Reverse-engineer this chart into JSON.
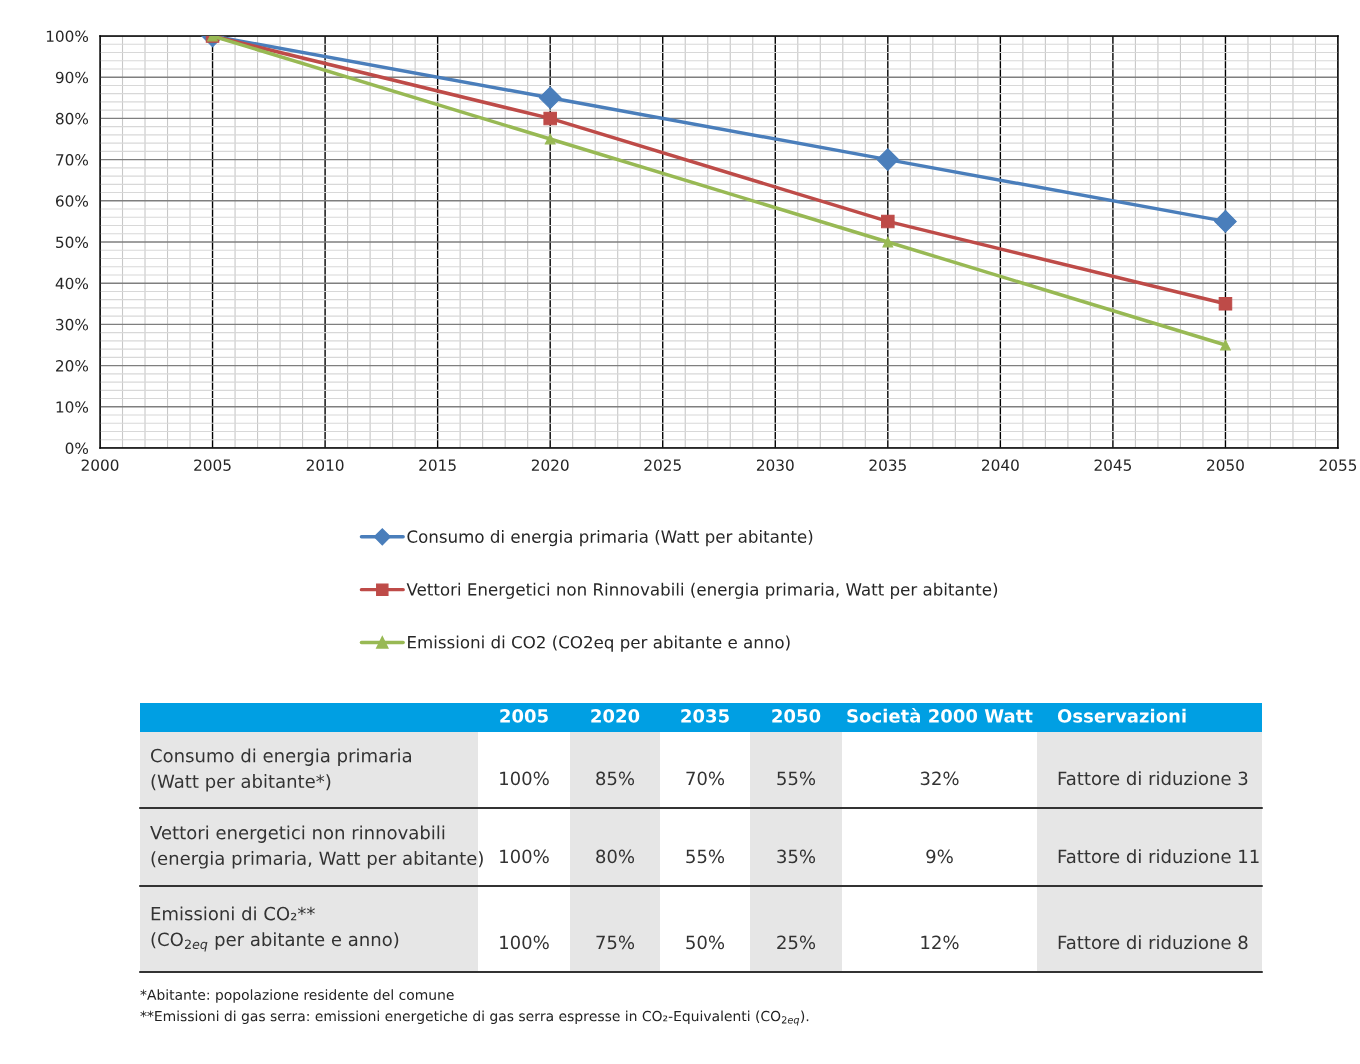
{
  "chart_data": {
    "type": "line",
    "x": [
      2005,
      2020,
      2035,
      2050
    ],
    "series": [
      {
        "name": "Consumo di energia primaria (Watt per abitante)",
        "color": "#4a7ebb",
        "marker": "diamond",
        "values": [
          100,
          85,
          70,
          55
        ]
      },
      {
        "name": "Vettori Energetici non Rinnovabili (energia primaria, Watt per abitante)",
        "color": "#be4b48",
        "marker": "square",
        "values": [
          100,
          80,
          55,
          35
        ]
      },
      {
        "name": "Emissioni di CO2 (CO2eq per abitante e anno)",
        "color": "#98b954",
        "marker": "triangle",
        "values": [
          100,
          75,
          50,
          25
        ]
      }
    ],
    "xlim": [
      2000,
      2055
    ],
    "xticks": [
      2000,
      2005,
      2010,
      2015,
      2020,
      2025,
      2030,
      2035,
      2040,
      2045,
      2050,
      2055
    ],
    "ylim": [
      0,
      100
    ],
    "yticks": [
      {
        "value": 0,
        "label": "0%"
      },
      {
        "value": 10,
        "label": "10%"
      },
      {
        "value": 20,
        "label": "20%"
      },
      {
        "value": 30,
        "label": "30%"
      },
      {
        "value": 40,
        "label": "40%"
      },
      {
        "value": 50,
        "label": "50%"
      },
      {
        "value": 60,
        "label": "60%"
      },
      {
        "value": 70,
        "label": "70%"
      },
      {
        "value": 80,
        "label": "80%"
      },
      {
        "value": 90,
        "label": "90%"
      },
      {
        "value": 100,
        "label": "100%"
      }
    ],
    "grid": true,
    "legend": "bottom",
    "line_style": "solid",
    "annotations": [
      "2005",
      "2020",
      "2035",
      "2050",
      "Società 2000 Watt",
      "Osservazioni",
      "Consumo di energia primaria\n(Watt per abitante*)",
      "100%",
      "85%",
      "70%",
      "55%",
      "32%",
      "Fattore di riduzione 3",
      "Vettori energetici non rinnovabili\n(energia primaria, Watt per abitante)",
      "100%",
      "80%",
      "55%",
      "35%",
      "9%",
      "Fattore di riduzione 11",
      "Emissioni di CO₂**\n(CO$_{2eq}$ per abitante e anno)",
      "100%",
      "75%",
      "50%",
      "25%",
      "12%",
      "Fattore di riduzione 8",
      "*Abitante: popolazione residente del comune",
      "**Emissioni di gas serra: emissioni energetiche di gas serra espresse in CO₂-Equivalenti (CO$_{2eq}$)."
    ]
  }
}
